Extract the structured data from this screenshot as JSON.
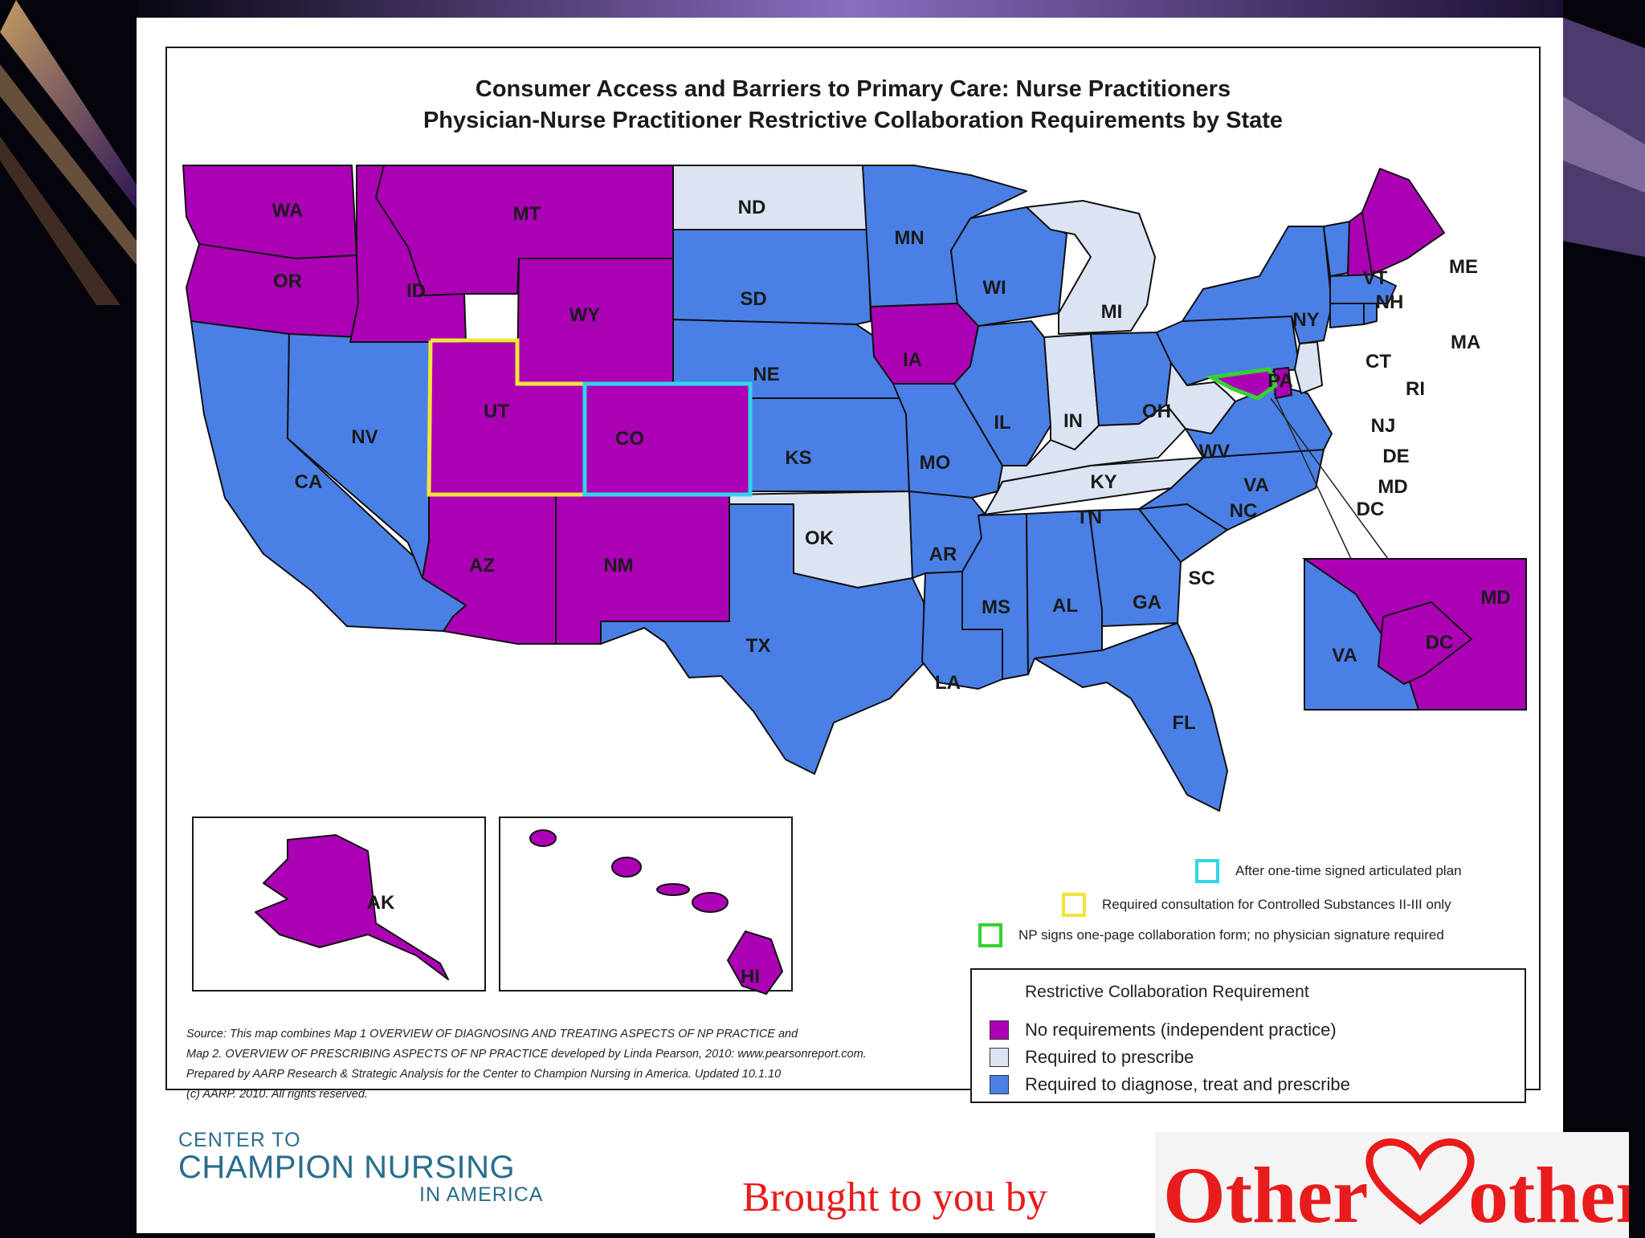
{
  "map": {
    "title_line1": "Consumer Access and Barriers to Primary Care: Nurse Practitioners",
    "title_line2": "Physician-Nurse Practitioner Restrictive Collaboration Requirements by State",
    "colors": {
      "no_requirements": "#ac00b5",
      "required_to_prescribe": "#dce4f3",
      "required_all": "#4a80e6",
      "articulated_plan_outline": "#30d6e8",
      "consultation_outline": "#f1e43a",
      "collaboration_form_outline": "#36d130"
    },
    "states": {
      "WA": "WA",
      "OR": "OR",
      "CA": "CA",
      "NV": "NV",
      "ID": "ID",
      "MT": "MT",
      "WY": "WY",
      "UT": "UT",
      "CO": "CO",
      "AZ": "AZ",
      "NM": "NM",
      "ND": "ND",
      "SD": "SD",
      "NE": "NE",
      "KS": "KS",
      "OK": "OK",
      "TX": "TX",
      "MN": "MN",
      "IA": "IA",
      "MO": "MO",
      "AR": "AR",
      "LA": "LA",
      "WI": "WI",
      "IL": "IL",
      "MI": "MI",
      "IN": "IN",
      "OH": "OH",
      "KY": "KY",
      "TN": "TN",
      "MS": "MS",
      "AL": "AL",
      "GA": "GA",
      "FL": "FL",
      "SC": "SC",
      "NC": "NC",
      "VA": "VA",
      "WV": "WV",
      "PA": "PA",
      "NY": "NY",
      "VT": "VT",
      "NH": "NH",
      "ME": "ME",
      "MA": "MA",
      "CT": "CT",
      "RI": "RI",
      "NJ": "NJ",
      "DE": "DE",
      "MD": "MD",
      "DC": "DC",
      "AK": "AK",
      "HI": "HI"
    },
    "inset": {
      "MD": "MD",
      "DC": "DC",
      "VA": "VA"
    },
    "outline_key": [
      {
        "label": "After one-time signed articulated plan",
        "color": "#30d6e8"
      },
      {
        "label": "Required consultation for Controlled Substances II-III only",
        "color": "#f1e43a"
      },
      {
        "label": "NP signs one-page collaboration form; no physician signature required",
        "color": "#36d130"
      }
    ],
    "legend": {
      "title": "Restrictive Collaboration Requirement",
      "items": [
        {
          "label": "No requirements (independent practice)",
          "color": "#ac00b5"
        },
        {
          "label": "Required to prescribe",
          "color": "#dce4f3"
        },
        {
          "label": "Required to diagnose, treat and prescribe",
          "color": "#4a80e6"
        }
      ]
    },
    "source_lines": [
      "Source: This map combines Map 1 OVERVIEW OF DIAGNOSING AND TREATING ASPECTS OF NP PRACTICE and",
      "Map 2. OVERVIEW OF PRESCRIBING ASPECTS OF NP PRACTICE developed by Linda Pearson, 2010: www.pearsonreport.com.",
      "Prepared by AARP Research & Strategic Analysis for the Center to Champion Nursing in America. Updated 10.1.10",
      "(c) AARP. 2010. All rights reserved."
    ]
  },
  "footer": {
    "logo_line1": "CENTER TO",
    "logo_line2": "CHAMPION NURSING",
    "logo_line3": "IN AMERICA",
    "brought_by": "Brought to you by",
    "brand_part1": "Other",
    "brand_part2": "other"
  }
}
